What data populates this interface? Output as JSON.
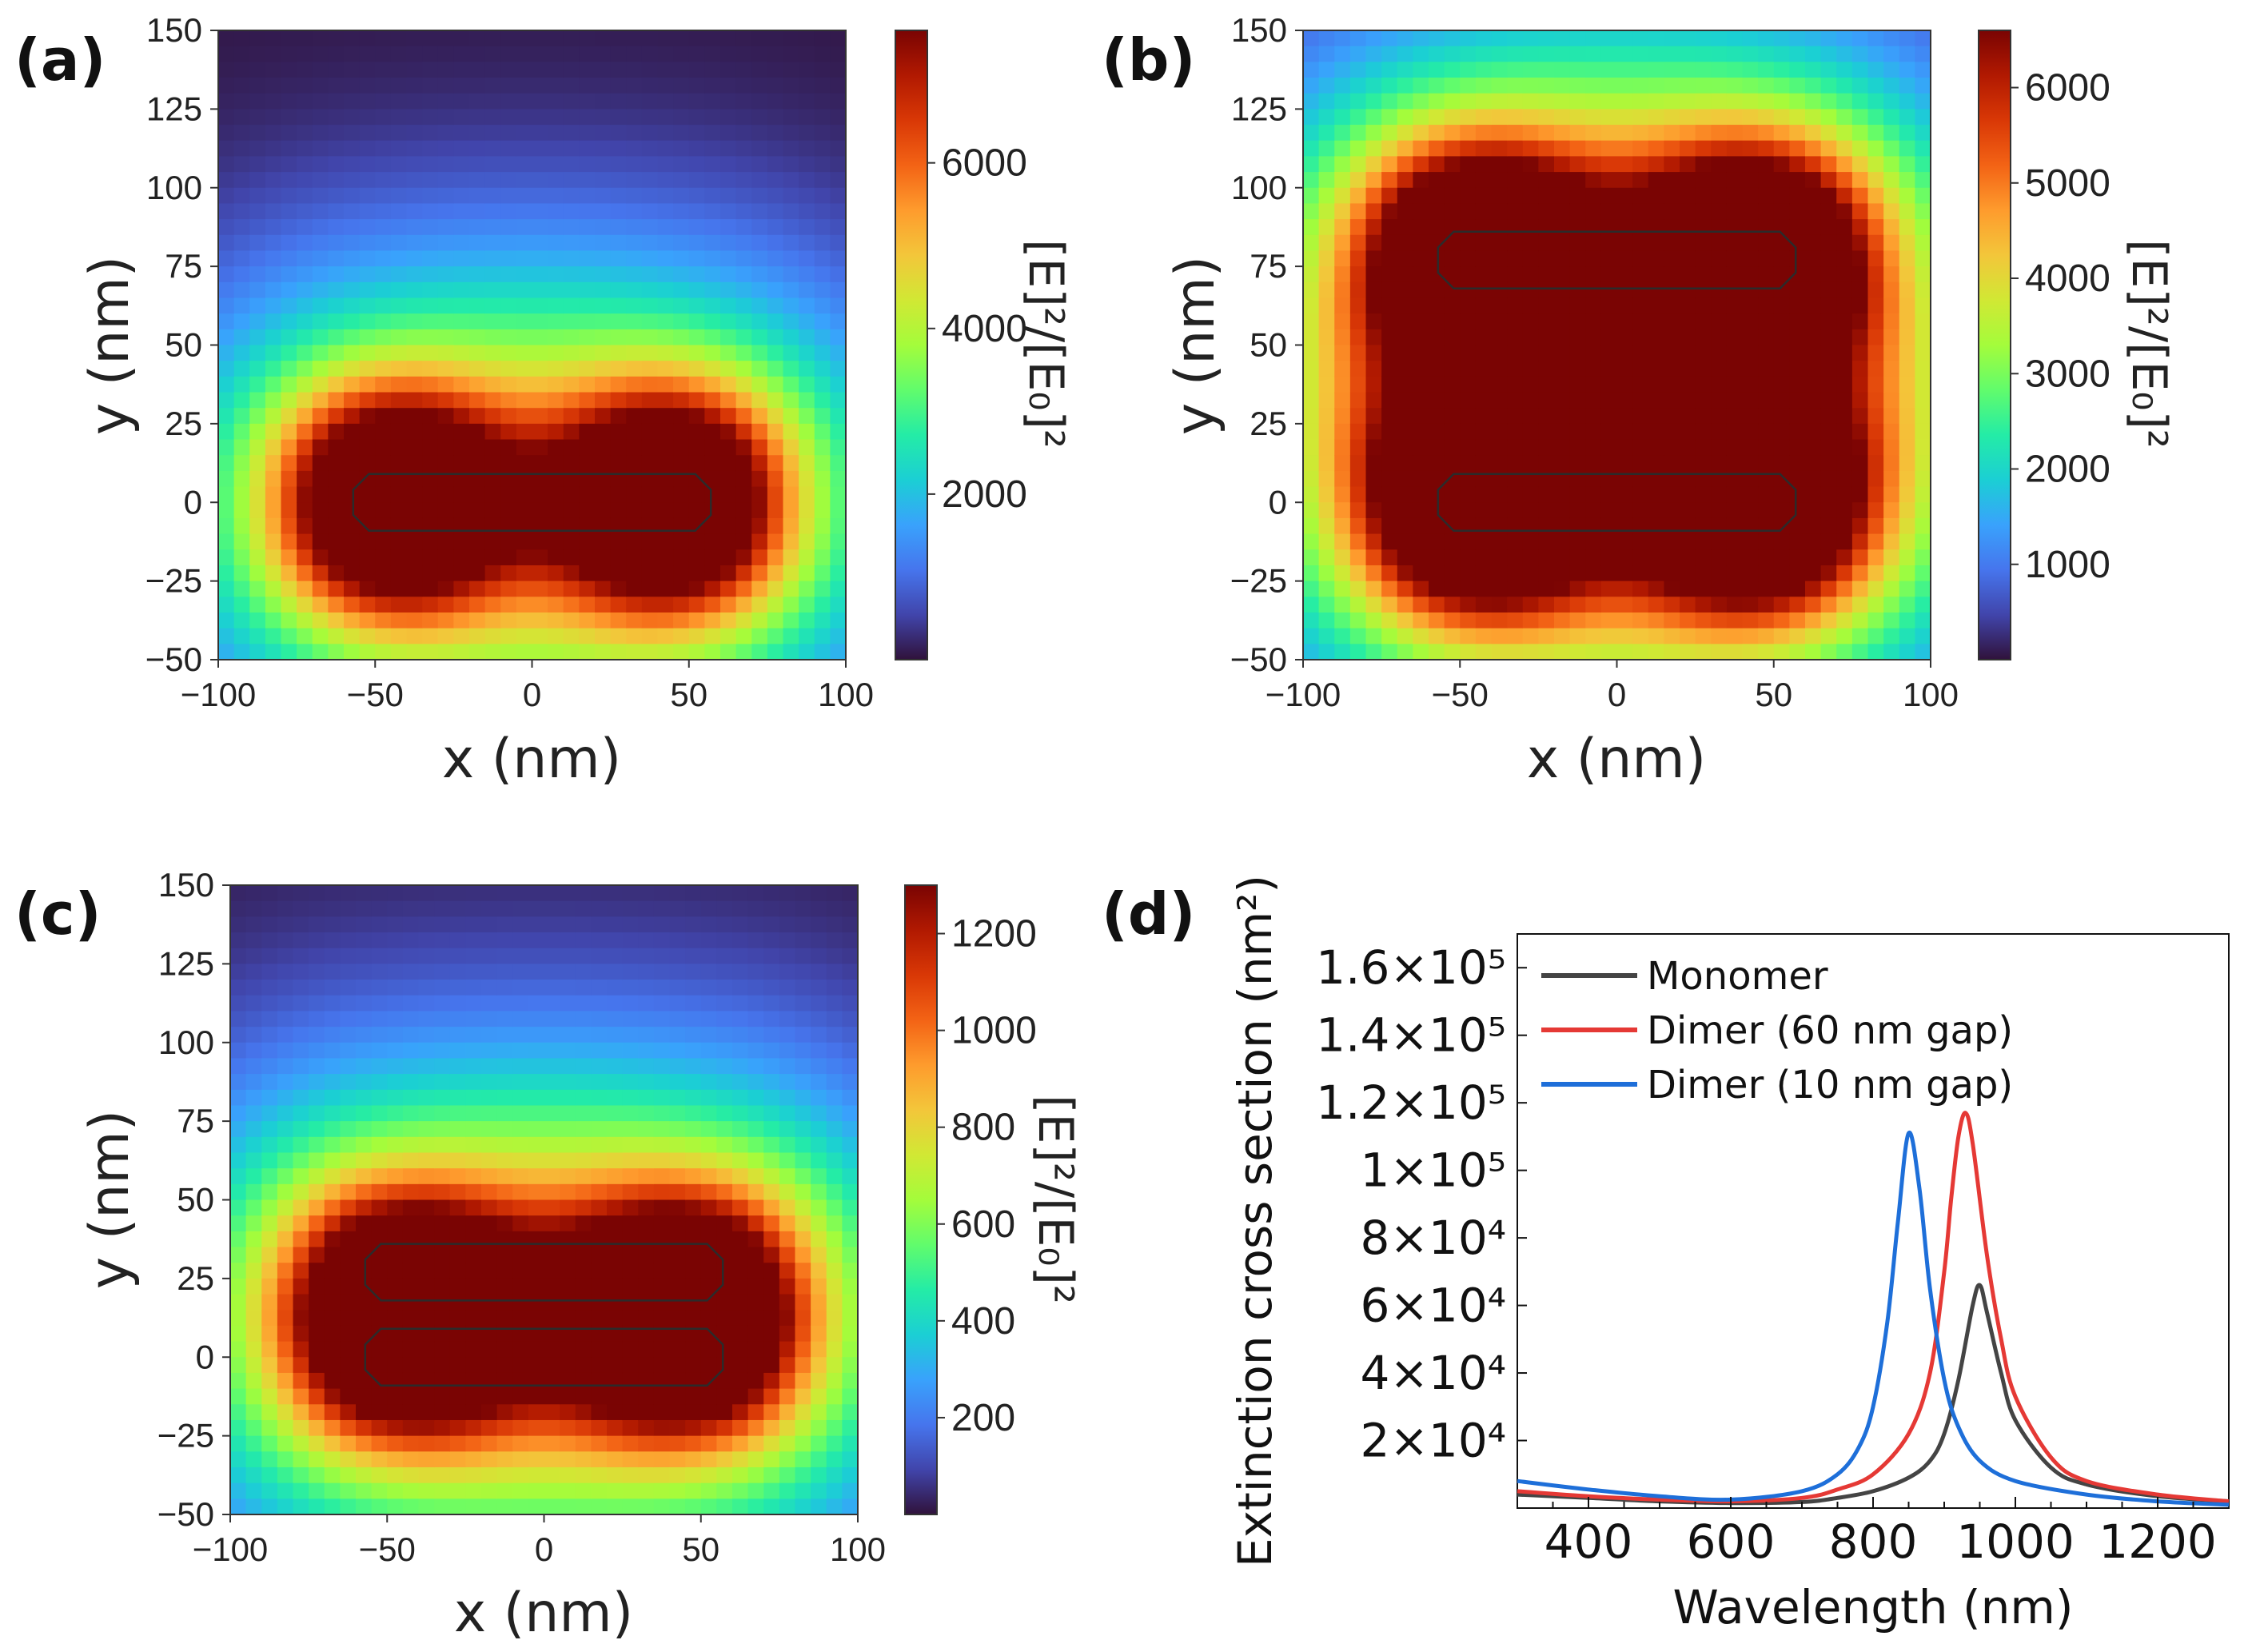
{
  "colors": {
    "monomer": "#444444",
    "dimer60": "#e53935",
    "dimer10": "#1e6fd9",
    "cmap": [
      "#30123b",
      "#4145ab",
      "#4675ed",
      "#39a2fc",
      "#1bcfd4",
      "#24eca6",
      "#61fc6c",
      "#a4fc3b",
      "#d1e834",
      "#f3c63a",
      "#fe9b2d",
      "#f36315",
      "#d93806",
      "#b11901",
      "#7a0403"
    ]
  },
  "panels": [
    {
      "label": "(a)",
      "xlabel": "x (nm)",
      "ylabel": "y (nm)",
      "xticks": [
        "−100",
        "−50",
        "0",
        "50",
        "100"
      ],
      "yticks": [
        "150",
        "125",
        "100",
        "75",
        "50",
        "25",
        "0",
        "−25",
        "−50"
      ],
      "cbar_label": "[E]²/[E₀]²",
      "cbar_ticks": [
        "6000",
        "4000",
        "2000"
      ]
    },
    {
      "label": "(b)",
      "xlabel": "x (nm)",
      "ylabel": "y (nm)",
      "xticks": [
        "−100",
        "−50",
        "0",
        "50",
        "100"
      ],
      "yticks": [
        "150",
        "125",
        "100",
        "75",
        "50",
        "25",
        "0",
        "−25",
        "−50"
      ],
      "cbar_label": "[E]²/[E₀]²",
      "cbar_ticks": [
        "6000",
        "5000",
        "4000",
        "3000",
        "2000",
        "1000"
      ]
    },
    {
      "label": "(c)",
      "xlabel": "x (nm)",
      "ylabel": "y (nm)",
      "xticks": [
        "−100",
        "−50",
        "0",
        "50",
        "100"
      ],
      "yticks": [
        "150",
        "125",
        "100",
        "75",
        "50",
        "25",
        "0",
        "−25",
        "−50"
      ],
      "cbar_label": "[E]²/[E₀]²",
      "cbar_ticks": [
        "1200",
        "1000",
        "800",
        "600",
        "400",
        "200"
      ]
    },
    {
      "label": "(d)",
      "xlabel": "Wavelength (nm)",
      "ylabel": "Extinction cross section (nm²)",
      "xticks": [
        "400",
        "600",
        "800",
        "1000",
        "1200"
      ],
      "yticks": [
        "1.6×10⁵",
        "1.4×10⁵",
        "1.2×10⁵",
        "1×10⁵",
        "8×10⁴",
        "6×10⁴",
        "4×10⁴",
        "2×10⁴"
      ],
      "legend": [
        "Monomer",
        "Dimer (60 nm gap)",
        "Dimer (10 nm gap)"
      ]
    }
  ],
  "chart_data": [
    {
      "type": "heatmap",
      "panel": "(a)",
      "title": "",
      "xlabel": "x (nm)",
      "ylabel": "y (nm)",
      "xlim": [
        -100,
        100
      ],
      "ylim": [
        -50,
        150
      ],
      "colorbar": {
        "label": "[E]²/[E₀]²",
        "min": 0,
        "max": 7600,
        "ticks": [
          2000,
          4000,
          6000
        ]
      },
      "rods": [
        {
          "x0": -57,
          "x1": 57,
          "y0": -9,
          "y1": 9
        }
      ],
      "hotspots": [
        {
          "x": -44,
          "y": 0,
          "peak": 7600
        },
        {
          "x": 44,
          "y": 0,
          "peak": 7600
        }
      ]
    },
    {
      "type": "heatmap",
      "panel": "(b)",
      "title": "",
      "xlabel": "x (nm)",
      "ylabel": "y (nm)",
      "xlim": [
        -100,
        100
      ],
      "ylim": [
        -50,
        150
      ],
      "colorbar": {
        "label": "[E]²/[E₀]²",
        "min": 0,
        "max": 6600,
        "ticks": [
          1000,
          2000,
          3000,
          4000,
          5000,
          6000
        ]
      },
      "rods": [
        {
          "x0": -57,
          "x1": 57,
          "y0": -9,
          "y1": 9
        },
        {
          "x0": -57,
          "x1": 57,
          "y0": 68,
          "y1": 86
        }
      ],
      "hotspots": [
        {
          "x": -44,
          "y": 0,
          "peak": 6600
        },
        {
          "x": 44,
          "y": 0,
          "peak": 6600
        },
        {
          "x": -44,
          "y": 77,
          "peak": 6600
        },
        {
          "x": 44,
          "y": 77,
          "peak": 6600
        }
      ]
    },
    {
      "type": "heatmap",
      "panel": "(c)",
      "title": "",
      "xlabel": "x (nm)",
      "ylabel": "y (nm)",
      "xlim": [
        -100,
        100
      ],
      "ylim": [
        -50,
        150
      ],
      "colorbar": {
        "label": "[E]²/[E₀]²",
        "min": 0,
        "max": 1300,
        "ticks": [
          200,
          400,
          600,
          800,
          1000,
          1200
        ]
      },
      "rods": [
        {
          "x0": -57,
          "x1": 57,
          "y0": -9,
          "y1": 9
        },
        {
          "x0": -57,
          "x1": 57,
          "y0": 18,
          "y1": 36
        }
      ],
      "hotspots": [
        {
          "x": -44,
          "y": 13,
          "peak": 1300
        },
        {
          "x": 44,
          "y": 13,
          "peak": 1300
        }
      ]
    },
    {
      "type": "line",
      "panel": "(d)",
      "title": "",
      "xlabel": "Wavelength (nm)",
      "ylabel": "Extinction cross section (nm²)",
      "xlim": [
        300,
        1300
      ],
      "ylim": [
        0,
        170000
      ],
      "xticks": [
        400,
        600,
        800,
        1000,
        1200
      ],
      "yticks": [
        20000,
        40000,
        60000,
        80000,
        100000,
        120000,
        140000,
        160000
      ],
      "legend_position": "top-left",
      "series": [
        {
          "name": "Monomer",
          "color": "#444444",
          "x": [
            300,
            400,
            500,
            600,
            700,
            750,
            800,
            850,
            880,
            900,
            920,
            940,
            950,
            960,
            980,
            1000,
            1050,
            1100,
            1200,
            1300
          ],
          "y": [
            4000,
            3000,
            2000,
            1500,
            1800,
            3000,
            5000,
            9000,
            14000,
            22000,
            38000,
            60000,
            66000,
            58000,
            40000,
            26000,
            12000,
            7000,
            3500,
            2000
          ]
        },
        {
          "name": "Dimer (60 nm gap)",
          "color": "#e53935",
          "x": [
            300,
            400,
            500,
            600,
            700,
            750,
            800,
            850,
            880,
            900,
            910,
            920,
            930,
            940,
            960,
            980,
            1000,
            1050,
            1100,
            1200,
            1300
          ],
          "y": [
            5000,
            3500,
            2500,
            2000,
            3000,
            5500,
            10000,
            22000,
            40000,
            70000,
            92000,
            110000,
            117000,
            108000,
            75000,
            50000,
            33000,
            15000,
            8000,
            4000,
            2000
          ]
        },
        {
          "name": "Dimer (10 nm gap)",
          "color": "#1e6fd9",
          "x": [
            300,
            400,
            500,
            600,
            700,
            750,
            780,
            800,
            820,
            835,
            850,
            865,
            880,
            900,
            920,
            950,
            1000,
            1100,
            1200,
            1300
          ],
          "y": [
            8000,
            5500,
            3500,
            2500,
            5000,
            10000,
            18000,
            30000,
            55000,
            85000,
            111000,
            95000,
            65000,
            38000,
            24000,
            14000,
            8000,
            4000,
            2000,
            1000
          ]
        }
      ]
    }
  ]
}
